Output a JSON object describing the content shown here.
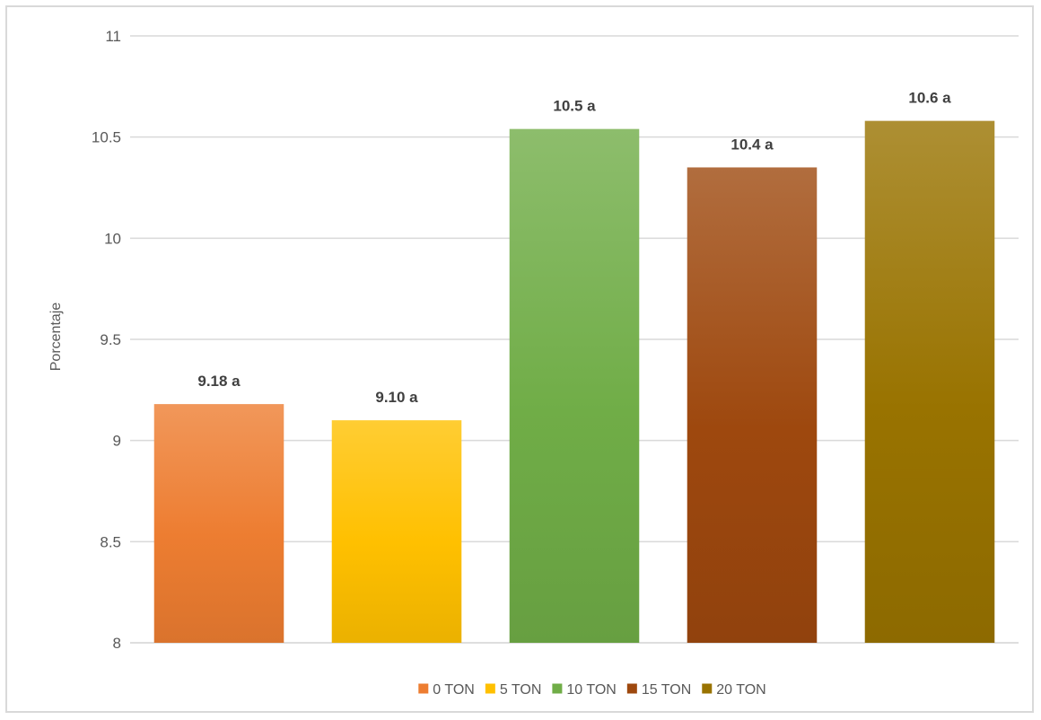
{
  "chart_data": {
    "type": "bar",
    "title": "",
    "xlabel": "",
    "ylabel": "Porcentaje",
    "ylim": [
      8,
      11
    ],
    "yticks": [
      8,
      8.5,
      9,
      9.5,
      10,
      10.5,
      11
    ],
    "ytick_labels": [
      "8",
      "8.5",
      "9",
      "9.5",
      "10",
      "10.5",
      "11"
    ],
    "grid": true,
    "legend_position": "bottom",
    "series": [
      {
        "name": "0 TON",
        "value": 9.18,
        "label": "9.18 a",
        "color": "#ED7D31"
      },
      {
        "name": "5 TON",
        "value": 9.1,
        "label": "9.10 a",
        "color": "#FFC000"
      },
      {
        "name": "10 TON",
        "value": 10.54,
        "label": "10.5 a",
        "color": "#70AD47"
      },
      {
        "name": "15 TON",
        "value": 10.35,
        "label": "10.4 a",
        "color": "#9E480E"
      },
      {
        "name": "20 TON",
        "value": 10.58,
        "label": "10.6 a",
        "color": "#997300"
      }
    ]
  }
}
